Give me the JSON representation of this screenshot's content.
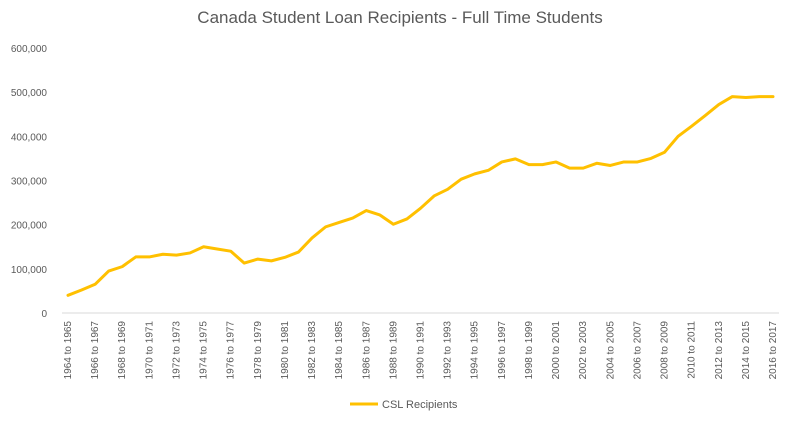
{
  "chart_data": {
    "type": "line",
    "title": "Canada Student Loan Recipients - Full Time Students",
    "xlabel": "",
    "ylabel": "",
    "ylim": [
      0,
      600000
    ],
    "y_ticks": [
      "0",
      "100,000",
      "200,000",
      "300,000",
      "400,000",
      "500,000",
      "600,000"
    ],
    "x_tick_labels": [
      "1964 to 1965",
      "1966 to 1967",
      "1968 to 1969",
      "1970 to 1971",
      "1972 to 1973",
      "1974 to 1975",
      "1976 to 1977",
      "1978 to 1979",
      "1980 to 1981",
      "1982 to 1983",
      "1984 to 1985",
      "1986 to 1987",
      "1988 to 1989",
      "1990 to 1991",
      "1992 to 1993",
      "1994 to 1995",
      "1996 to 1997",
      "1998 to 1999",
      "2000 to 2001",
      "2002 to 2003",
      "2004 to 2005",
      "2006 to 2007",
      "2008 to 2009",
      "2010 to 2011",
      "2012 to 2013",
      "2014 to 2015",
      "2016 to 2017"
    ],
    "grid": false,
    "legend": "bottom",
    "color": "#FFC000",
    "series": [
      {
        "name": "CSL Recipients",
        "values": [
          40000,
          52000,
          65000,
          95000,
          105000,
          127000,
          127000,
          133000,
          131000,
          136000,
          150000,
          145000,
          140000,
          113000,
          122000,
          118000,
          126000,
          138000,
          170000,
          195000,
          205000,
          215000,
          232000,
          222000,
          201000,
          213000,
          237000,
          265000,
          280000,
          303000,
          315000,
          323000,
          342000,
          349000,
          336000,
          336000,
          342000,
          328000,
          328000,
          339000,
          334000,
          342000,
          342000,
          350000,
          364000,
          400000,
          423000,
          447000,
          472000,
          490000,
          488000,
          490000,
          490000
        ]
      }
    ]
  }
}
